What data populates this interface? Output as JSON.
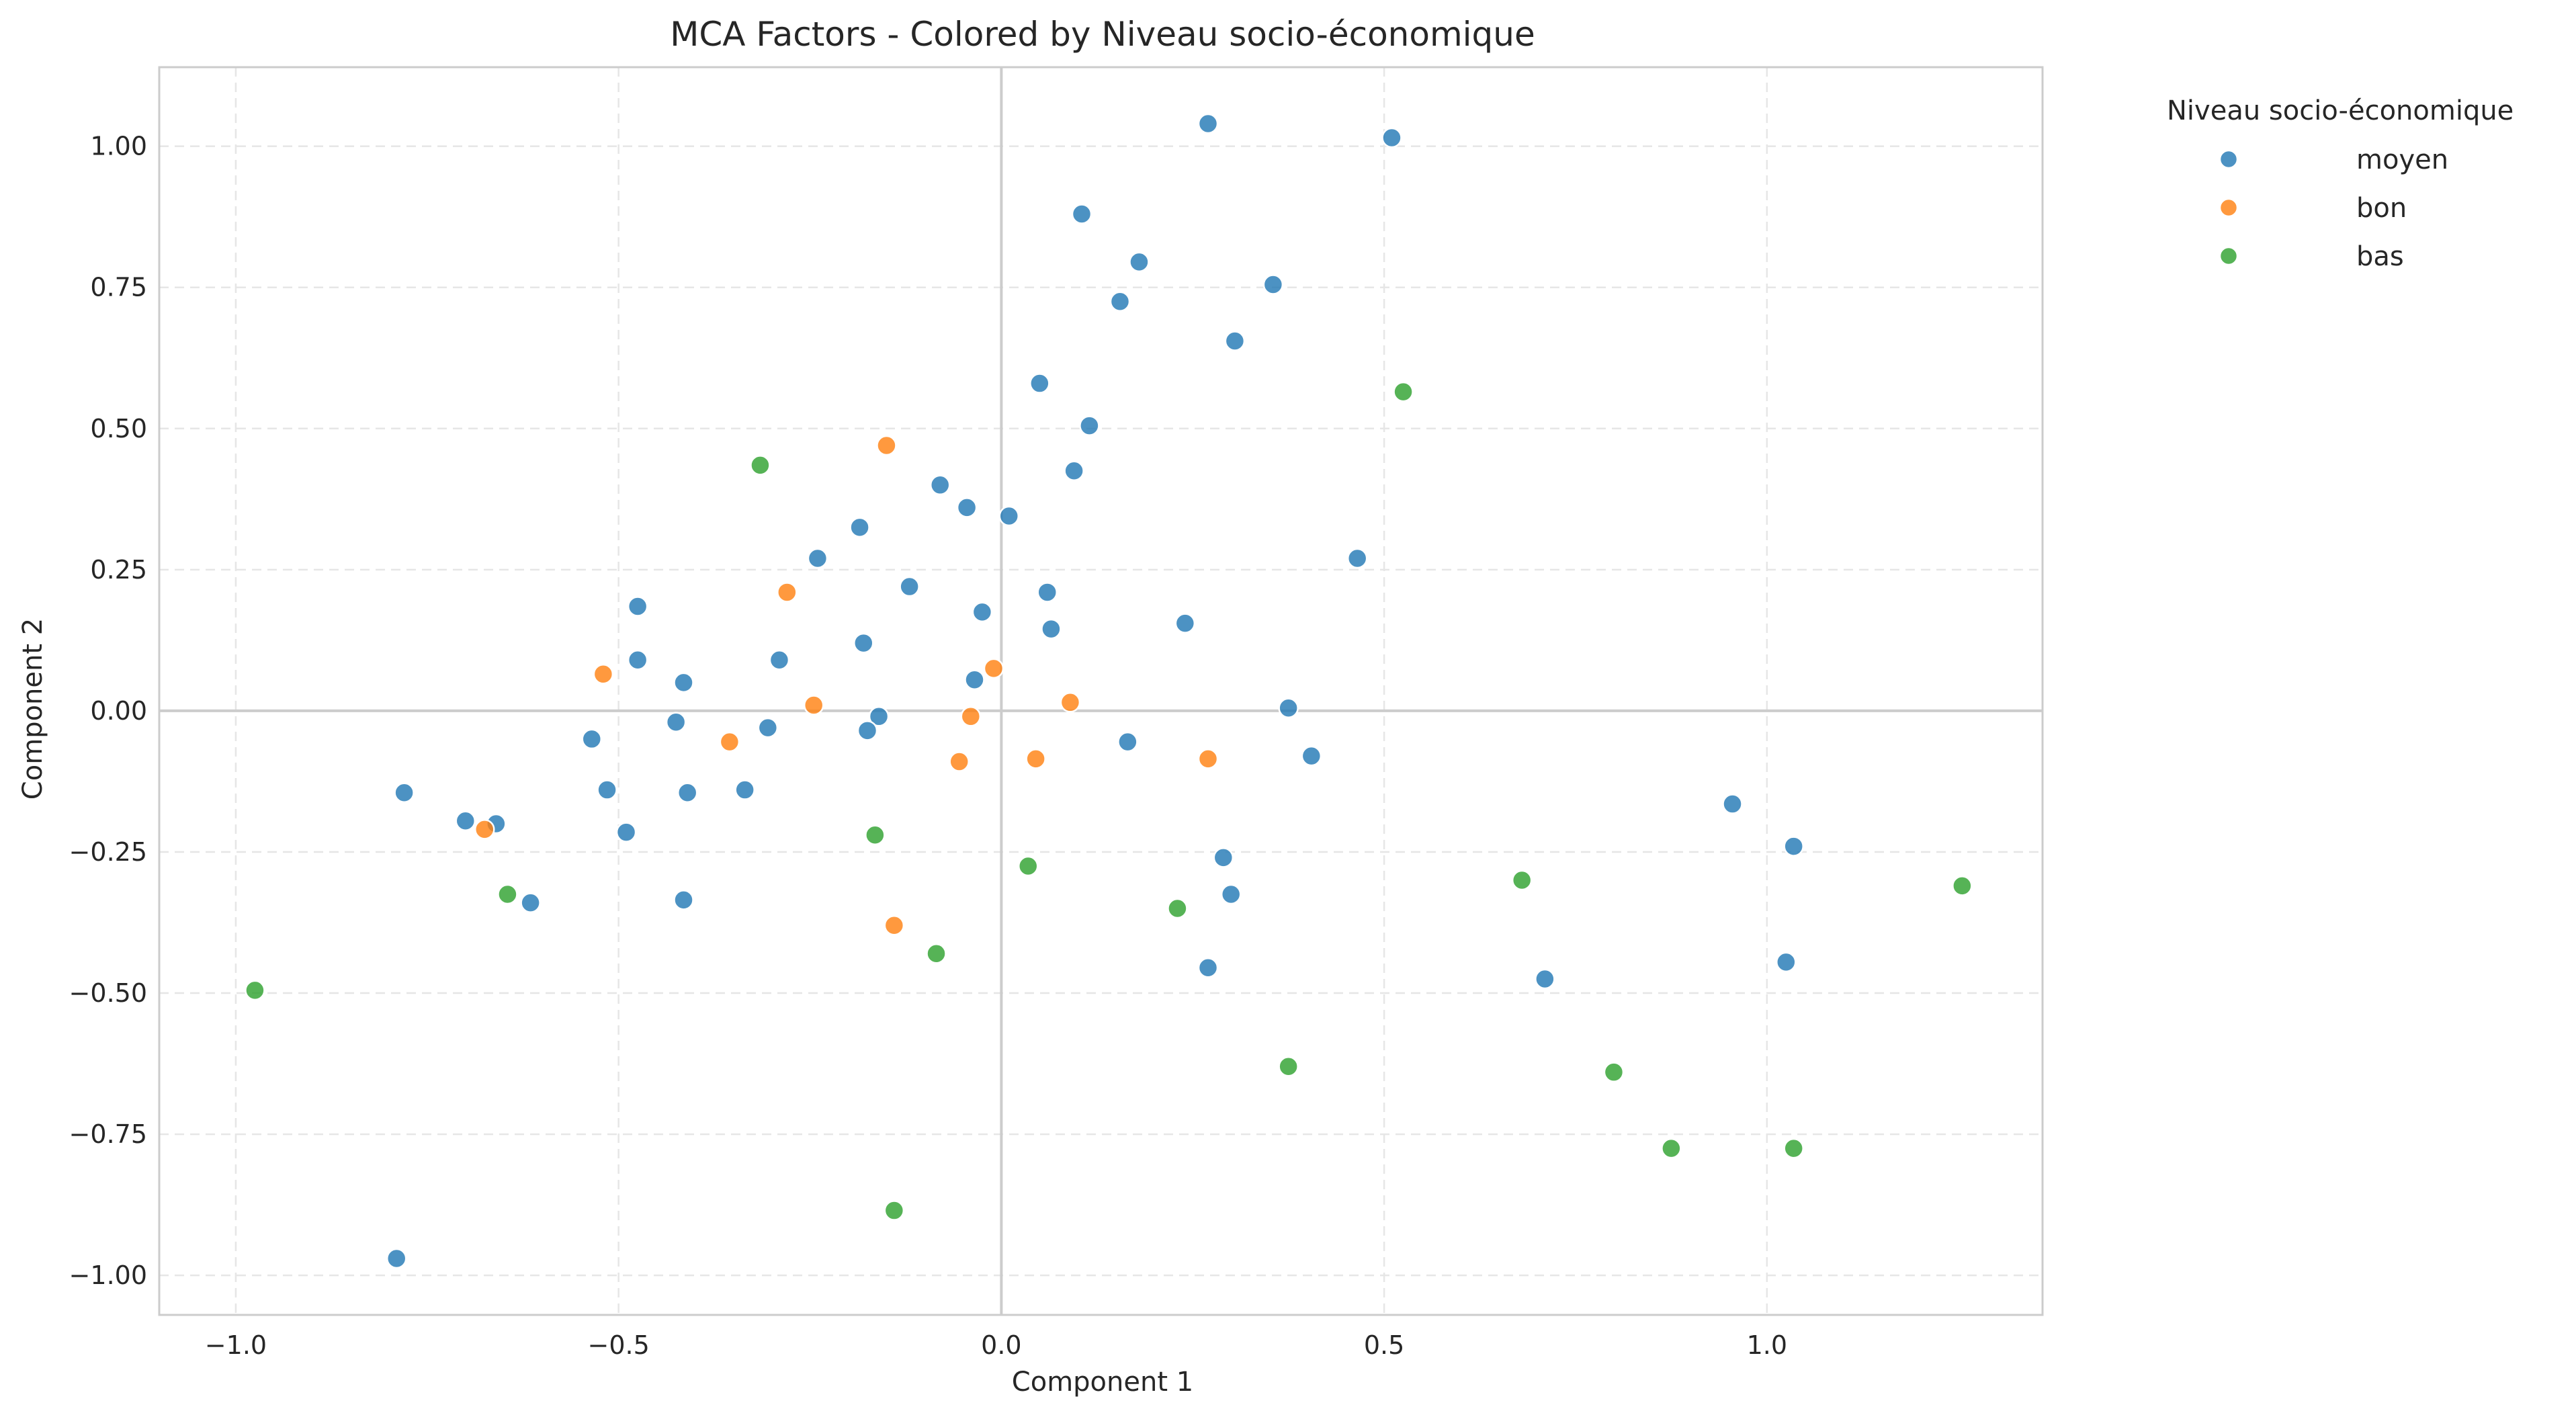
{
  "chart_data": {
    "type": "scatter",
    "title": "MCA Factors - Colored by Niveau socio-économique",
    "xlabel": "Component 1",
    "ylabel": "Component 2",
    "xlim": [
      -1.1,
      1.36
    ],
    "ylim": [
      -1.07,
      1.14
    ],
    "xticks": [
      -1.0,
      -0.5,
      0.0,
      0.5,
      1.0
    ],
    "xtick_labels": [
      "−1.0",
      "−0.5",
      "0.0",
      "0.5",
      "1.0"
    ],
    "yticks": [
      -1.0,
      -0.75,
      -0.5,
      -0.25,
      0.0,
      0.25,
      0.5,
      0.75,
      1.0
    ],
    "ytick_labels": [
      "−1.00",
      "−0.75",
      "−0.50",
      "−0.25",
      "0.00",
      "0.25",
      "0.50",
      "0.75",
      "1.00"
    ],
    "grid": true,
    "grid_style": "dashed",
    "reference_lines": {
      "x": 0,
      "y": 0
    },
    "legend": {
      "title": "Niveau socio-économique",
      "placement": "outside-top-right"
    },
    "series": [
      {
        "name": "moyen",
        "color": "#1f77b4",
        "points": [
          [
            0.27,
            1.04
          ],
          [
            0.51,
            1.015
          ],
          [
            0.105,
            0.88
          ],
          [
            0.18,
            0.795
          ],
          [
            0.155,
            0.725
          ],
          [
            0.355,
            0.755
          ],
          [
            0.305,
            0.655
          ],
          [
            0.05,
            0.58
          ],
          [
            0.115,
            0.505
          ],
          [
            0.095,
            0.425
          ],
          [
            -0.08,
            0.4
          ],
          [
            -0.045,
            0.36
          ],
          [
            0.01,
            0.345
          ],
          [
            -0.185,
            0.325
          ],
          [
            -0.24,
            0.27
          ],
          [
            0.465,
            0.27
          ],
          [
            -0.475,
            0.185
          ],
          [
            -0.12,
            0.22
          ],
          [
            0.06,
            0.21
          ],
          [
            -0.025,
            0.175
          ],
          [
            -0.18,
            0.12
          ],
          [
            0.24,
            0.155
          ],
          [
            0.065,
            0.145
          ],
          [
            -0.475,
            0.09
          ],
          [
            -0.29,
            0.09
          ],
          [
            -0.415,
            0.05
          ],
          [
            -0.035,
            0.055
          ],
          [
            0.375,
            0.005
          ],
          [
            -0.16,
            -0.01
          ],
          [
            -0.425,
            -0.02
          ],
          [
            -0.305,
            -0.03
          ],
          [
            -0.175,
            -0.035
          ],
          [
            -0.535,
            -0.05
          ],
          [
            0.165,
            -0.055
          ],
          [
            0.405,
            -0.08
          ],
          [
            -0.78,
            -0.145
          ],
          [
            -0.515,
            -0.14
          ],
          [
            -0.335,
            -0.14
          ],
          [
            -0.41,
            -0.145
          ],
          [
            -0.7,
            -0.195
          ],
          [
            -0.66,
            -0.2
          ],
          [
            -0.49,
            -0.215
          ],
          [
            0.955,
            -0.165
          ],
          [
            1.035,
            -0.24
          ],
          [
            0.29,
            -0.26
          ],
          [
            0.3,
            -0.325
          ],
          [
            -0.615,
            -0.34
          ],
          [
            -0.415,
            -0.335
          ],
          [
            0.27,
            -0.455
          ],
          [
            1.025,
            -0.445
          ],
          [
            0.71,
            -0.475
          ],
          [
            -0.79,
            -0.97
          ]
        ]
      },
      {
        "name": "bon",
        "color": "#ff7f0e",
        "points": [
          [
            -0.15,
            0.47
          ],
          [
            -0.28,
            0.21
          ],
          [
            -0.52,
            0.065
          ],
          [
            -0.01,
            0.075
          ],
          [
            0.09,
            0.015
          ],
          [
            -0.245,
            0.01
          ],
          [
            -0.04,
            -0.01
          ],
          [
            -0.355,
            -0.055
          ],
          [
            -0.055,
            -0.09
          ],
          [
            0.045,
            -0.085
          ],
          [
            0.27,
            -0.085
          ],
          [
            -0.675,
            -0.21
          ],
          [
            -0.14,
            -0.38
          ]
        ]
      },
      {
        "name": "bas",
        "color": "#2ca02c",
        "points": [
          [
            -0.315,
            0.435
          ],
          [
            0.525,
            0.565
          ],
          [
            -0.165,
            -0.22
          ],
          [
            0.035,
            -0.275
          ],
          [
            -0.645,
            -0.325
          ],
          [
            0.23,
            -0.35
          ],
          [
            0.68,
            -0.3
          ],
          [
            1.255,
            -0.31
          ],
          [
            -0.085,
            -0.43
          ],
          [
            -0.975,
            -0.495
          ],
          [
            0.375,
            -0.63
          ],
          [
            0.8,
            -0.64
          ],
          [
            0.875,
            -0.775
          ],
          [
            1.035,
            -0.775
          ],
          [
            -0.14,
            -0.885
          ]
        ]
      }
    ]
  }
}
